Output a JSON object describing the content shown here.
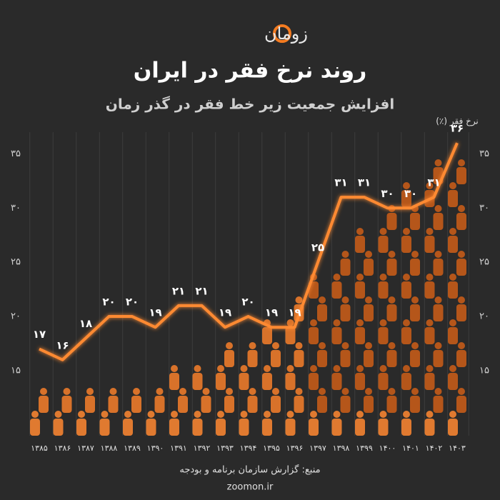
{
  "chart_data": {
    "type": "line",
    "brand": "زومان",
    "title": "روند نرخ فقر در ایران",
    "subtitle": "افزایش جمعیت زیر خط فقر در گذر زمان",
    "y_label": "نرخ فقر (٪)",
    "source": "منبع: گزارش سازمان برنامه و بودجه",
    "website": "zoomon.ir",
    "categories": [
      "۱۳۸۵",
      "۱۳۸۶",
      "۱۳۸۷",
      "۱۳۸۸",
      "۱۳۸۹",
      "۱۳۹۰",
      "۱۳۹۱",
      "۱۳۹۲",
      "۱۳۹۳",
      "۱۳۹۴",
      "۱۳۹۵",
      "۱۳۹۶",
      "۱۳۹۷",
      "۱۳۹۸",
      "۱۳۹۹",
      "۱۴۰۰",
      "۱۴۰۱",
      "۱۴۰۲",
      "۱۴۰۳"
    ],
    "values": [
      17,
      16,
      18,
      20,
      20,
      19,
      21,
      21,
      19,
      20,
      19,
      19,
      25,
      31,
      31,
      30,
      30,
      31,
      36
    ],
    "value_labels": [
      "۱۷",
      "۱۶",
      "۱۸",
      "۲۰",
      "۲۰",
      "۱۹",
      "۲۱",
      "۲۱",
      "۱۹",
      "۲۰",
      "۱۹",
      "۱۹",
      "۲۵",
      "۳۱",
      "۳۱",
      "۳۰",
      "۳۰",
      "۳۱",
      "۳۶"
    ],
    "color": "#ff8a33",
    "ylim": [
      9,
      37
    ],
    "yticks": [
      {
        "value": 15,
        "label": "۱۵"
      },
      {
        "value": 20,
        "label": "۲۰"
      },
      {
        "value": 25,
        "label": "۲۵"
      },
      {
        "value": 30,
        "label": "۳۰"
      },
      {
        "value": 35,
        "label": "۳۵"
      }
    ]
  }
}
